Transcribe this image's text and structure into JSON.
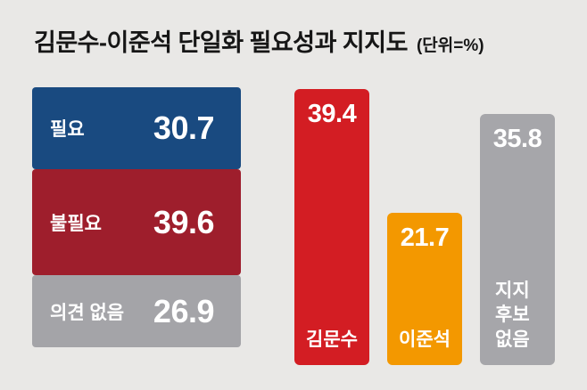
{
  "title": {
    "main": "김문수-이준석 단일화 필요성과 지지도",
    "unit": "(단위=%)"
  },
  "colors": {
    "background": "#e9e8e6",
    "title_text": "#161616",
    "blue": "#194a80",
    "dark_red": "#9e1e2c",
    "gray": "#a4a4a8",
    "red": "#d31d23",
    "orange": "#f39800",
    "bar_text": "#ffffff"
  },
  "necessity": {
    "items": [
      {
        "label": "필요",
        "value": "30.7"
      },
      {
        "label": "불필요",
        "value": "39.6"
      },
      {
        "label": "의견 없음",
        "value": "26.9"
      }
    ]
  },
  "support": {
    "items": [
      {
        "label": "김문수",
        "value": "39.4"
      },
      {
        "label": "이준석",
        "value": "21.7"
      },
      {
        "label": "지지 후보 없음",
        "value": "35.8"
      }
    ]
  },
  "chart_data": [
    {
      "type": "bar",
      "categories": [
        "필요",
        "불필요",
        "의견 없음"
      ],
      "values": [
        30.7,
        39.6,
        26.9
      ],
      "unit": "%",
      "orientation": "stacked-list",
      "legend_position": "none",
      "grid": false
    },
    {
      "type": "bar",
      "categories": [
        "김문수",
        "이준석",
        "지지 후보 없음"
      ],
      "values": [
        39.4,
        21.7,
        35.8
      ],
      "unit": "%",
      "ylim": [
        0,
        40
      ],
      "legend_position": "none",
      "grid": false
    }
  ]
}
